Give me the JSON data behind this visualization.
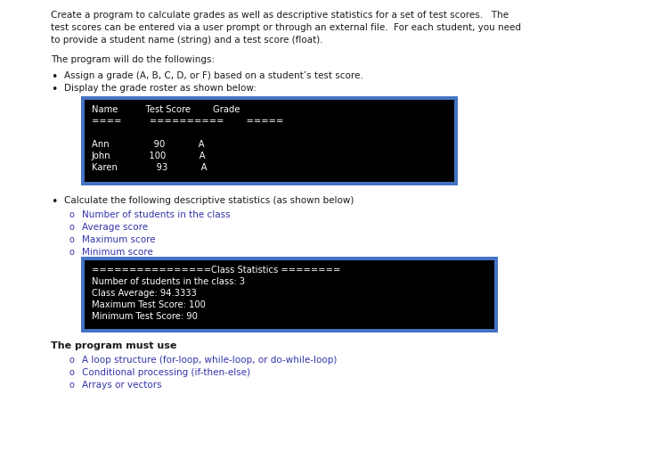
{
  "bg_color": "#ffffff",
  "text_color": "#1a1a1a",
  "blue_border": "#4472C4",
  "terminal_bg": "#000000",
  "terminal_fg": "#ffffff",
  "p1_lines": [
    "Create a program to calculate grades as well as descriptive statistics for a set of test scores.   The",
    "test scores can be entered via a user prompt or through an external file.  For each student, you need",
    "to provide a student name (string) and a test score (float)."
  ],
  "p2": "The program will do the followings:",
  "bullet1": "Assign a grade (A, B, C, D, or F) based on a student’s test score.",
  "bullet2": "Display the grade roster as shown below:",
  "roster_line1": "Name          Test Score        Grade",
  "roster_line2": "====          ==========        =====",
  "roster_line3": "",
  "roster_line4": "Ann                90            A",
  "roster_line5": "John              100            A",
  "roster_line6": "Karen              93            A",
  "bullet3": "Calculate the following descriptive statistics (as shown below)",
  "sub1": "Number of students in the class",
  "sub2": "Average score",
  "sub3": "Maximum score",
  "sub4": "Minimum score",
  "stats_line1": "================Class Statistics ========",
  "stats_line2": "Number of students in the class: 3",
  "stats_line3": "Class Average: 94.3333",
  "stats_line4": "Maximum Test Score: 100",
  "stats_line5": "Minimum Test Score: 90",
  "must_title": "The program must use",
  "must1": "A loop structure (for-loop, while-loop, or do-while-loop)",
  "must2": "Conditional processing (if-then-else)",
  "must3": "Arrays or vectors",
  "body_fs": 7.5,
  "mono_fs": 7.2,
  "bullet_fs": 9.0,
  "sub_color": "#3333aa"
}
